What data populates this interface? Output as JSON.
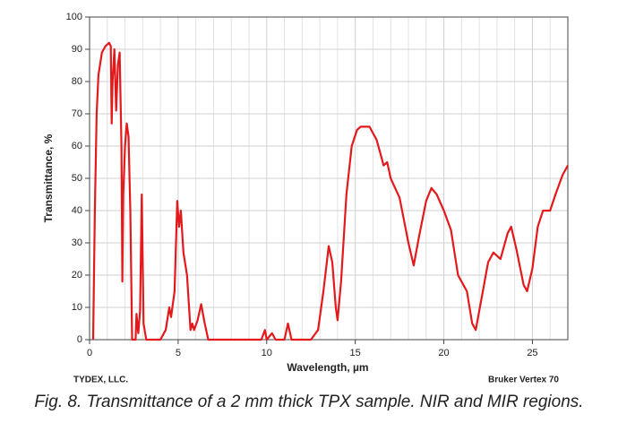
{
  "chart_data": {
    "type": "line",
    "ylabel": "Transmittance, %",
    "xlabel": "Wavelength, µm",
    "footer_left": "TYDEX, LLC.",
    "footer_right": "Bruker Vertex 70",
    "caption": "Fig.  8. Transmittance of a 2 mm thick TPX sample. NIR and MIR regions.",
    "xlim": [
      0,
      27
    ],
    "ylim": [
      0,
      100
    ],
    "xticks": [
      0,
      5,
      10,
      15,
      20,
      25
    ],
    "yticks": [
      0,
      10,
      20,
      30,
      40,
      50,
      60,
      70,
      80,
      90,
      100
    ],
    "xminorticks": [
      1,
      2,
      3,
      4,
      6,
      7,
      8,
      9,
      11,
      12,
      13,
      14,
      16,
      17,
      18,
      19,
      21,
      22,
      23,
      24,
      26
    ],
    "grid": true,
    "x": [
      0.2,
      0.3,
      0.4,
      0.5,
      0.7,
      0.9,
      1.1,
      1.2,
      1.25,
      1.3,
      1.4,
      1.5,
      1.6,
      1.7,
      1.8,
      1.85,
      1.9,
      2.0,
      2.1,
      2.2,
      2.3,
      2.4,
      2.6,
      2.65,
      2.75,
      2.85,
      2.95,
      3.05,
      3.2,
      4.0,
      4.3,
      4.5,
      4.6,
      4.8,
      4.95,
      5.05,
      5.15,
      5.3,
      5.5,
      5.7,
      5.8,
      5.9,
      6.1,
      6.3,
      6.5,
      6.7,
      9.7,
      9.9,
      10.0,
      10.3,
      10.5,
      11.0,
      11.2,
      11.4,
      12.5,
      12.9,
      13.2,
      13.5,
      13.7,
      13.9,
      14.0,
      14.2,
      14.5,
      14.8,
      15.1,
      15.3,
      15.8,
      16.2,
      16.4,
      16.6,
      16.8,
      17.0,
      17.5,
      18.0,
      18.3,
      18.6,
      19.0,
      19.3,
      19.6,
      20.0,
      20.4,
      20.8,
      21.1,
      21.3,
      21.6,
      21.8,
      22.2,
      22.5,
      22.8,
      23.2,
      23.6,
      23.8,
      24.1,
      24.5,
      24.7,
      25.0,
      25.3,
      25.6,
      26.0,
      26.3,
      26.7,
      27.0
    ],
    "series": [
      {
        "color": "#e3191c",
        "values": [
          0,
          40,
          70,
          82,
          89,
          91,
          92,
          91,
          67,
          80,
          90,
          71,
          85,
          89,
          60,
          18,
          45,
          60,
          67,
          63,
          40,
          0,
          0,
          8,
          2,
          9,
          45,
          5,
          0,
          0,
          3,
          10,
          7,
          15,
          43,
          35,
          40,
          27,
          20,
          3,
          5,
          3,
          6,
          11,
          5,
          0,
          0,
          3,
          0,
          2,
          0,
          0,
          5,
          0,
          0,
          3,
          15,
          29,
          24,
          10,
          6,
          18,
          45,
          60,
          65,
          66,
          66,
          62,
          58,
          54,
          55,
          50,
          44,
          30,
          23,
          32,
          43,
          47,
          45,
          40,
          34,
          20,
          17,
          15,
          5,
          3,
          15,
          24,
          27,
          25,
          33,
          35,
          28,
          17,
          15,
          22,
          35,
          40,
          40,
          45,
          51,
          54
        ]
      }
    ]
  }
}
